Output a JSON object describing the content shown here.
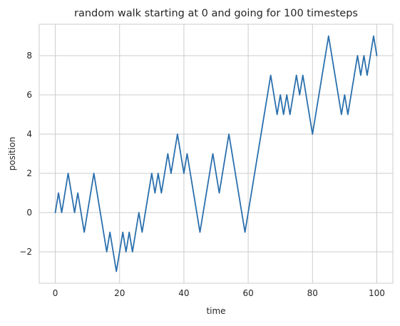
{
  "chart_data": {
    "type": "line",
    "title": "random walk starting at 0 and going for 100 timesteps",
    "xlabel": "time",
    "ylabel": "position",
    "xlim": [
      -5,
      105
    ],
    "ylim": [
      -3.6,
      9.6
    ],
    "xticks": [
      0,
      20,
      40,
      60,
      80,
      100
    ],
    "yticks": [
      -2,
      0,
      2,
      4,
      6,
      8
    ],
    "ytick_labels": [
      "−2",
      "0",
      "2",
      "4",
      "6",
      "8"
    ],
    "grid": true,
    "colors": {
      "line": "#2a6fad",
      "grid": "#cccccc",
      "background": "#ffffff"
    },
    "series": [
      {
        "x": [
          0,
          1,
          2,
          3,
          4,
          5,
          6,
          7,
          8,
          9,
          10,
          11,
          12,
          13,
          14,
          15,
          16,
          17,
          18,
          19,
          20,
          21,
          22,
          23,
          24,
          25,
          26,
          27,
          28,
          29,
          30,
          31,
          32,
          33,
          34,
          35,
          36,
          37,
          38,
          39,
          40,
          41,
          42,
          43,
          44,
          45,
          46,
          47,
          48,
          49,
          50,
          51,
          52,
          53,
          54,
          55,
          56,
          57,
          58,
          59,
          60,
          61,
          62,
          63,
          64,
          65,
          66,
          67,
          68,
          69,
          70,
          71,
          72,
          73,
          74,
          75,
          76,
          77,
          78,
          79,
          80,
          81,
          82,
          83,
          84,
          85,
          86,
          87,
          88,
          89,
          90,
          91,
          92,
          93,
          94,
          95,
          96,
          97,
          98,
          99,
          100
        ],
        "values": [
          0,
          1,
          0,
          1,
          2,
          1,
          0,
          1,
          0,
          -1,
          0,
          1,
          2,
          1,
          0,
          -1,
          -2,
          -1,
          -2,
          -3,
          -2,
          -1,
          -2,
          -1,
          -2,
          -1,
          0,
          -1,
          0,
          1,
          2,
          1,
          2,
          1,
          2,
          3,
          2,
          3,
          4,
          3,
          2,
          3,
          2,
          1,
          0,
          -1,
          0,
          1,
          2,
          3,
          2,
          1,
          2,
          3,
          4,
          3,
          2,
          1,
          0,
          -1,
          0,
          1,
          2,
          3,
          4,
          5,
          6,
          7,
          6,
          5,
          6,
          5,
          6,
          5,
          6,
          7,
          6,
          7,
          6,
          5,
          4,
          5,
          6,
          7,
          8,
          9,
          8,
          7,
          6,
          5,
          6,
          5,
          6,
          7,
          8,
          7,
          8,
          7,
          8,
          9,
          8
        ]
      }
    ]
  }
}
